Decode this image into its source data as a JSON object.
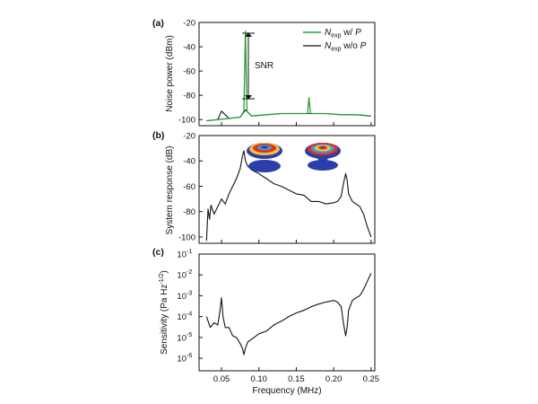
{
  "chart_data": [
    {
      "panel_label": "(a)",
      "type": "line",
      "ylabel": "Noise power (dBm)",
      "xlim": [
        0.02,
        0.255
      ],
      "ylim": [
        -105,
        -20
      ],
      "yticks": [
        "-20",
        "-40",
        "-60",
        "-80",
        "-100"
      ],
      "yticks_values": [
        -20,
        -40,
        -60,
        -80,
        -100
      ],
      "legend_position": "top-right",
      "legend": [
        {
          "main": "N",
          "sub": "exp",
          "rest": " w/ ",
          "italic": "P"
        },
        {
          "main": "N",
          "sub": "exp",
          "rest": " w/o ",
          "italic": "P"
        }
      ],
      "colors": {
        "with_P": "#2e9b3a",
        "without_P": "#111111"
      },
      "annotation": "SNR",
      "series": [
        {
          "name_ref": "with_P",
          "description_points": {
            "x": [
              0.03,
              0.045,
              0.06,
              0.075,
              0.08,
              0.082,
              0.084,
              0.09,
              0.11,
              0.13,
              0.15,
              0.165,
              0.167,
              0.169,
              0.19,
              0.21,
              0.23,
              0.25
            ],
            "y": [
              -101,
              -100,
              -99,
              -98,
              -93,
              -27,
              -93,
              -97,
              -96,
              -95,
              -95,
              -95,
              -82,
              -95,
              -95,
              -96,
              -96,
              -97
            ]
          }
        },
        {
          "name_ref": "without_P",
          "description_points": {
            "x": [
              0.03,
              0.045,
              0.05,
              0.06,
              0.075,
              0.082,
              0.09,
              0.11,
              0.13,
              0.15,
              0.17,
              0.19,
              0.21,
              0.23,
              0.25
            ],
            "y": [
              -101,
              -100,
              -93,
              -99,
              -98,
              -92,
              -97,
              -96,
              -95,
              -95,
              -95,
              -95,
              -96,
              -96,
              -97
            ]
          }
        }
      ]
    },
    {
      "panel_label": "(b)",
      "type": "line",
      "ylabel": "System response (dB)",
      "xlim": [
        0.02,
        0.255
      ],
      "ylim": [
        -105,
        -20
      ],
      "yticks": [
        "-20",
        "-40",
        "-60",
        "-80",
        "-100"
      ],
      "yticks_values": [
        -20,
        -40,
        -60,
        -80,
        -100
      ],
      "series": [
        {
          "x": [
            0.03,
            0.032,
            0.034,
            0.036,
            0.04,
            0.045,
            0.05,
            0.055,
            0.06,
            0.065,
            0.07,
            0.075,
            0.078,
            0.08,
            0.082,
            0.085,
            0.09,
            0.1,
            0.11,
            0.12,
            0.13,
            0.14,
            0.15,
            0.16,
            0.17,
            0.18,
            0.19,
            0.2,
            0.205,
            0.21,
            0.213,
            0.216,
            0.218,
            0.22,
            0.225,
            0.23,
            0.235,
            0.24,
            0.245,
            0.25
          ],
          "y": [
            -103,
            -78,
            -86,
            -75,
            -82,
            -76,
            -70,
            -74,
            -66,
            -60,
            -54,
            -46,
            -36,
            -32,
            -40,
            -44,
            -47,
            -50,
            -54,
            -58,
            -60,
            -63,
            -66,
            -67,
            -72,
            -72,
            -74,
            -73,
            -72,
            -68,
            -58,
            -50,
            -55,
            -66,
            -72,
            -74,
            -76,
            -82,
            -92,
            -100
          ]
        }
      ]
    },
    {
      "panel_label": "(c)",
      "type": "line",
      "ylabel": "Sensitivity (Pa Hz",
      "ylabel_sup": "-1/2",
      "ylabel_end": ")",
      "ylog": true,
      "xlim": [
        0.02,
        0.255
      ],
      "ylim_log10": [
        -6.6,
        -1
      ],
      "yticks": [
        "10",
        "10",
        "10",
        "10",
        "10",
        "10"
      ],
      "yticks_exponents": [
        "-1",
        "-2",
        "-3",
        "-4",
        "-5",
        "-6"
      ],
      "yticks_values": [
        0.1,
        0.01,
        0.001,
        0.0001,
        1e-05,
        1e-06
      ],
      "xlabel": "Frequency (MHz)",
      "xticks": [
        "0.05",
        "0.10",
        "0.15",
        "0.20",
        "0.25"
      ],
      "xticks_values": [
        0.05,
        0.1,
        0.15,
        0.2,
        0.25
      ],
      "series": [
        {
          "x": [
            0.03,
            0.035,
            0.04,
            0.045,
            0.048,
            0.05,
            0.052,
            0.055,
            0.06,
            0.065,
            0.07,
            0.075,
            0.078,
            0.08,
            0.082,
            0.085,
            0.09,
            0.1,
            0.11,
            0.12,
            0.13,
            0.14,
            0.15,
            0.16,
            0.17,
            0.18,
            0.19,
            0.2,
            0.205,
            0.21,
            0.213,
            0.216,
            0.218,
            0.22,
            0.225,
            0.23,
            0.235,
            0.24,
            0.245,
            0.25
          ],
          "y": [
            0.0001,
            3e-05,
            5e-05,
            4e-05,
            0.0002,
            0.0008,
            0.0001,
            3e-05,
            3e-05,
            1.2e-05,
            1e-05,
            5e-06,
            3e-06,
            1.5e-06,
            3e-06,
            6e-06,
            8e-06,
            1.5e-05,
            2e-05,
            4e-05,
            6e-05,
            0.0001,
            0.00015,
            0.0002,
            0.0003,
            0.0004,
            0.0005,
            0.0006,
            0.0005,
            0.0003,
            5e-05,
            1.2e-05,
            3e-05,
            0.0002,
            0.0006,
            0.0008,
            0.001,
            0.002,
            0.005,
            0.012
          ]
        }
      ]
    }
  ]
}
